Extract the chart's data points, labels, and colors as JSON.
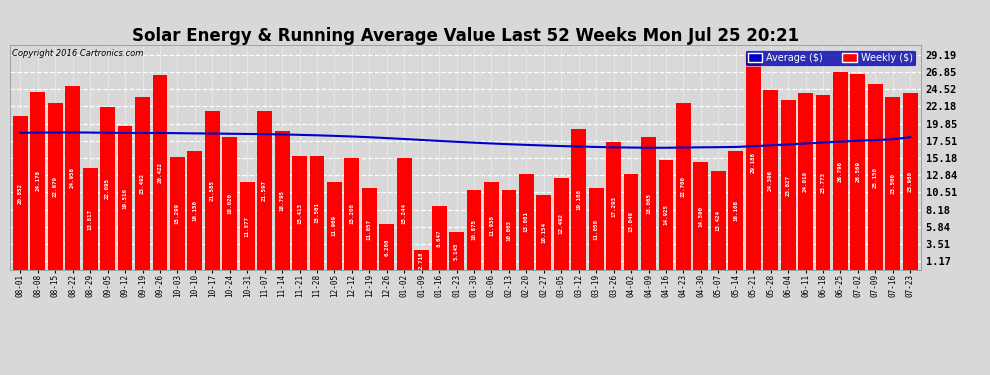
{
  "title": "Solar Energy & Running Average Value Last 52 Weeks Mon Jul 25 20:21",
  "copyright": "Copyright 2016 Cartronics.com",
  "yticks": [
    1.17,
    3.51,
    5.84,
    8.18,
    10.51,
    12.84,
    15.18,
    17.51,
    19.85,
    22.18,
    24.52,
    26.85,
    29.19
  ],
  "ylim": [
    0,
    30.5
  ],
  "categories": [
    "08-01",
    "08-08",
    "08-15",
    "08-22",
    "08-29",
    "09-05",
    "09-12",
    "09-19",
    "09-26",
    "10-03",
    "10-10",
    "10-17",
    "10-24",
    "10-31",
    "11-07",
    "11-14",
    "11-21",
    "11-28",
    "12-05",
    "12-12",
    "12-19",
    "12-26",
    "01-02",
    "01-09",
    "01-16",
    "01-23",
    "01-30",
    "02-06",
    "02-13",
    "02-20",
    "02-27",
    "03-05",
    "03-12",
    "03-19",
    "03-26",
    "04-02",
    "04-09",
    "04-16",
    "04-23",
    "04-30",
    "05-07",
    "05-14",
    "05-21",
    "05-28",
    "06-04",
    "06-11",
    "06-18",
    "06-25",
    "07-02",
    "07-09",
    "07-16",
    "07-23"
  ],
  "bar_values": [
    20.852,
    24.178,
    22.679,
    24.958,
    13.817,
    22.095,
    19.519,
    23.492,
    26.422,
    15.299,
    16.15,
    21.585,
    18.02,
    11.877,
    21.597,
    18.795,
    15.413,
    15.501,
    11.969,
    15.208,
    11.057,
    6.208,
    15.244,
    2.718,
    8.647,
    5.145,
    10.875,
    11.938,
    10.803,
    13.081,
    10.154,
    12.492,
    19.108,
    11.05,
    17.293,
    13.049,
    18.065,
    14.925,
    22.7,
    14.59,
    13.424,
    16.108,
    29.188,
    24.396,
    23.027,
    24.019,
    23.773,
    26.796,
    26.569,
    25.15,
    23.5,
    23.98
  ],
  "avg_values": [
    18.6,
    18.62,
    18.64,
    18.65,
    18.63,
    18.6,
    18.58,
    18.57,
    18.57,
    18.55,
    18.52,
    18.5,
    18.47,
    18.44,
    18.42,
    18.38,
    18.32,
    18.26,
    18.18,
    18.1,
    18.0,
    17.88,
    17.76,
    17.63,
    17.5,
    17.38,
    17.26,
    17.15,
    17.05,
    16.96,
    16.88,
    16.8,
    16.74,
    16.68,
    16.63,
    16.6,
    16.57,
    16.57,
    16.6,
    16.63,
    16.65,
    16.68,
    16.78,
    16.9,
    17.02,
    17.15,
    17.28,
    17.4,
    17.52,
    17.62,
    17.72,
    18.0
  ],
  "bar_color": "#ff0000",
  "avg_line_color": "#0000cc",
  "grid_color": "#aaaaaa",
  "bg_color": "#d8d8d8",
  "plot_bg_color": "#d8d8d8",
  "title_fontsize": 12,
  "legend_labels": [
    "Average ($)",
    "Weekly ($)"
  ],
  "legend_colors": [
    "#0000cc",
    "#ff0000"
  ],
  "legend_bg": "#0000aa"
}
